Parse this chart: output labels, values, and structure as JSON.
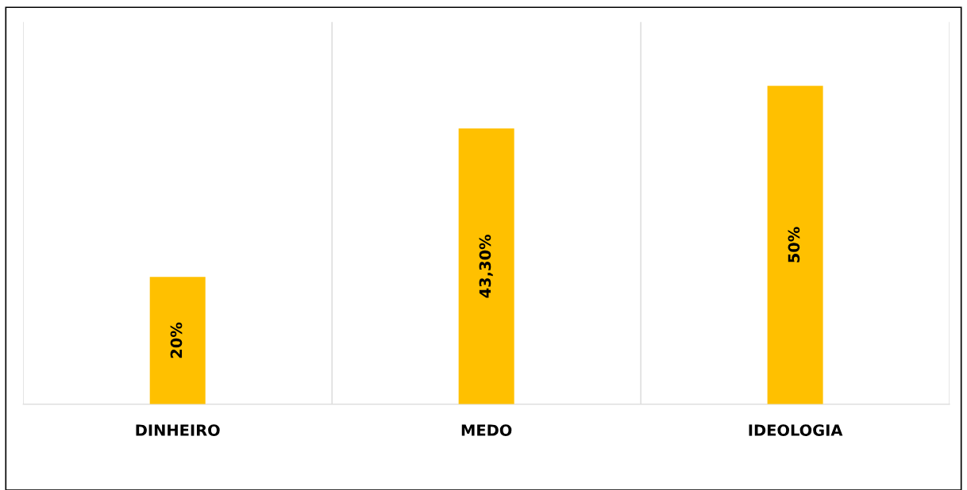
{
  "chart_data": {
    "type": "bar",
    "categories": [
      "DINHEIRO",
      "MEDO",
      "IDEOLOGIA"
    ],
    "values": [
      20,
      43.3,
      50
    ],
    "value_labels": [
      "20%",
      "43,30%",
      "50%"
    ],
    "color": "#ffc000",
    "grid": "x"
  }
}
